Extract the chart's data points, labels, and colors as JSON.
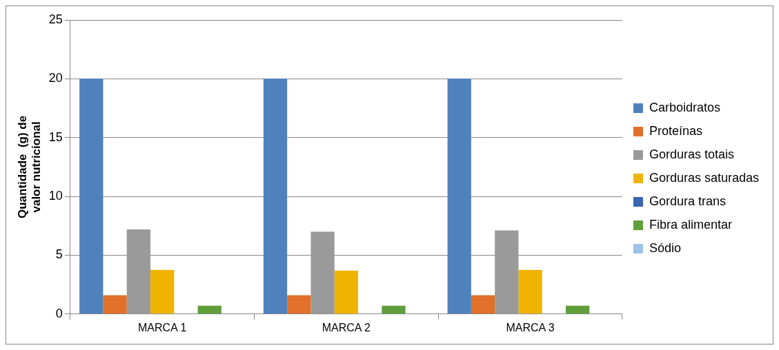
{
  "chart_data": {
    "type": "bar",
    "ylabel": "Quantidade  (g) de valor nutricional",
    "categories": [
      "MARCA 1",
      "MARCA 2",
      "MARCA 3"
    ],
    "series": [
      {
        "name": "Carboidratos",
        "color": "#4f81bd",
        "values": [
          20,
          20,
          20
        ]
      },
      {
        "name": "Proteínas",
        "color": "#e0702a",
        "values": [
          1.6,
          1.6,
          1.6
        ]
      },
      {
        "name": "Gorduras totais",
        "color": "#9a9a9a",
        "values": [
          7.2,
          7.0,
          7.1
        ]
      },
      {
        "name": "Gorduras saturadas",
        "color": "#f0b400",
        "values": [
          3.75,
          3.7,
          3.75
        ]
      },
      {
        "name": "Gordura trans",
        "color": "#3b64b0",
        "values": [
          0,
          0,
          0
        ]
      },
      {
        "name": "Fibra alimentar",
        "color": "#5f9e3a",
        "values": [
          0.7,
          0.7,
          0.7
        ]
      },
      {
        "name": "Sódio",
        "color": "#9dc3e6",
        "values": [
          0,
          0,
          0
        ]
      }
    ],
    "ylim": [
      0,
      25
    ],
    "yticks": [
      0,
      5,
      10,
      15,
      20,
      25
    ],
    "grid": "y",
    "legend": "right"
  }
}
